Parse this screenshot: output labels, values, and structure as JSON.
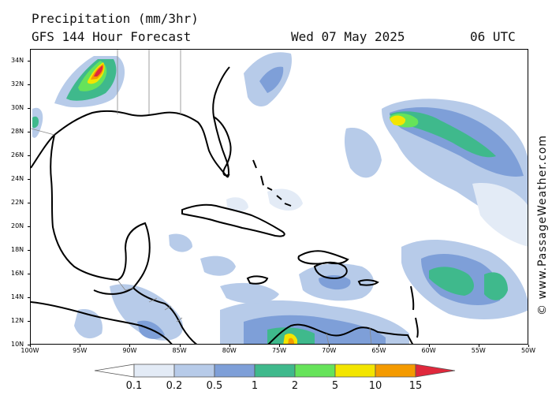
{
  "header": {
    "title": "Precipitation (mm/3hr)",
    "subtitle": "GFS 144 Hour Forecast",
    "date": "Wed 07 May 2025",
    "time": "06 UTC"
  },
  "watermark": "© www.PassageWeather.com",
  "map": {
    "lon_range": [
      -100,
      -50
    ],
    "lat_range": [
      10,
      35
    ],
    "lat_labels": [
      "34N",
      "32N",
      "30N",
      "28N",
      "26N",
      "24N",
      "22N",
      "20N",
      "18N",
      "16N",
      "14N",
      "12N",
      "10N"
    ],
    "lon_labels": [
      "100W",
      "95W",
      "90W",
      "85W",
      "80W",
      "75W",
      "70W",
      "65W",
      "60W",
      "55W",
      "50W"
    ],
    "ocean_color": "#ffffff",
    "land_outline_color": "#000000",
    "border_color": "#888888"
  },
  "legend": {
    "labels": [
      "0.1",
      "0.2",
      "0.5",
      "1",
      "2",
      "5",
      "10",
      "15"
    ],
    "colors": [
      "#ffffff",
      "#e3ebf6",
      "#b7cbe9",
      "#7e9fd8",
      "#3fb98c",
      "#66e35a",
      "#f3e500",
      "#f49a00",
      "#e0283c"
    ]
  }
}
